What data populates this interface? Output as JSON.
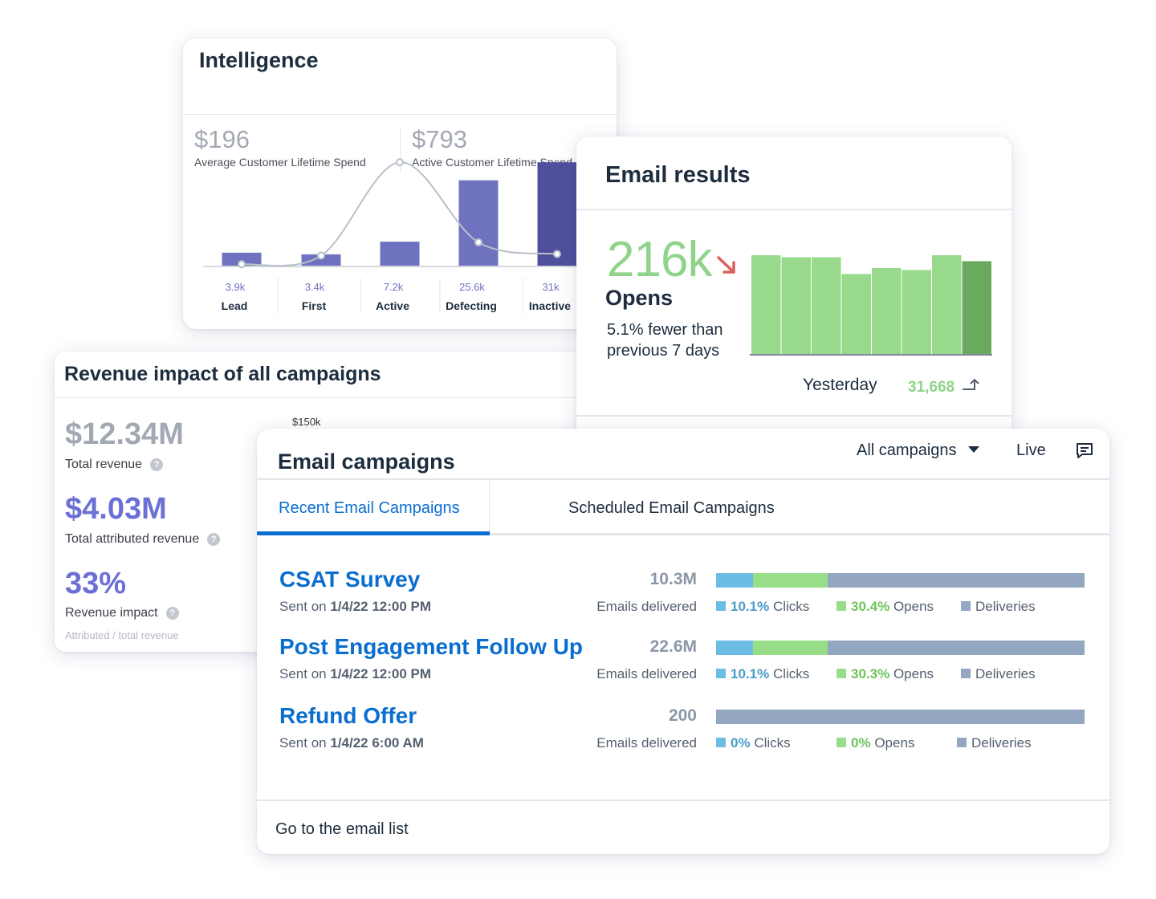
{
  "intelligence": {
    "title": "Intelligence",
    "kpis": [
      {
        "value": "$196",
        "label": "Average Customer Lifetime Spend"
      },
      {
        "value": "$793",
        "label": "Active Customer Lifetime Spend"
      }
    ],
    "colors": {
      "bar": "#6f73bf",
      "bar_last": "#4f4f9e",
      "curve": "#b9bfca"
    },
    "chart_data": {
      "type": "bar",
      "categories": [
        "Lead",
        "First",
        "Active",
        "Defecting",
        "Inactive"
      ],
      "data_labels": [
        "3.9k",
        "3.4k",
        "7.2k",
        "25.6k",
        "31k"
      ],
      "values": [
        3.9,
        3.4,
        7.2,
        25.6,
        31
      ],
      "curve_series": [
        0.2,
        3,
        31,
        7,
        3.5
      ],
      "ylim": [
        0,
        32
      ]
    }
  },
  "revenue": {
    "title": "Revenue impact of all campaigns",
    "axis_label": "$150k",
    "metrics": [
      {
        "value": "$12.34M",
        "label": "Total revenue",
        "color": "#a3a9b3"
      },
      {
        "value": "$4.03M",
        "label": "Total attributed revenue",
        "color": "#6b70d6"
      },
      {
        "value": "33%",
        "label": "Revenue impact",
        "color": "#6b70d6"
      }
    ],
    "subnote": "Attributed / total revenue",
    "help_glyph": "?"
  },
  "email_results": {
    "title": "Email results",
    "big_value": "216k",
    "metric": "Opens",
    "description": "5.1% fewer than previous 7 days",
    "yesterday_label": "Yesterday",
    "yesterday_value": "31,668",
    "colors": {
      "bar": "#98d98c",
      "bar_last": "#6aaa5e",
      "trend_down": "#d9625a"
    },
    "chart_data": {
      "type": "bar",
      "values": [
        100,
        98,
        98,
        81,
        87,
        85,
        100,
        94
      ],
      "ylim": [
        0,
        100
      ]
    }
  },
  "email_campaigns": {
    "title": "Email campaigns",
    "filter": "All campaigns",
    "live": "Live",
    "tabs": {
      "active": "Recent Email Campaigns",
      "inactive": "Scheduled Email Campaigns"
    },
    "campaigns": [
      {
        "name": "CSAT Survey",
        "sent_prefix": "Sent on",
        "sent_date": "1/4/22 12:00 PM",
        "count": "10.3M",
        "delivered_label": "Emails delivered",
        "clicks_pct": "10.1%",
        "clicks_label": "Clicks",
        "opens_pct": "30.4%",
        "opens_label": "Opens",
        "deliveries_label": "Deliveries",
        "click_share": 10.1,
        "open_share": 20.2
      },
      {
        "name": "Post Engagement Follow Up",
        "sent_prefix": "Sent on",
        "sent_date": "1/4/22 12:00 PM",
        "count": "22.6M",
        "delivered_label": "Emails delivered",
        "clicks_pct": "10.1%",
        "clicks_label": "Clicks",
        "opens_pct": "30.3%",
        "opens_label": "Opens",
        "deliveries_label": "Deliveries",
        "click_share": 10.1,
        "open_share": 20.2
      },
      {
        "name": "Refund Offer",
        "sent_prefix": "Sent on",
        "sent_date": "1/4/22 6:00 AM",
        "count": "200",
        "delivered_label": "Emails delivered",
        "clicks_pct": "0%",
        "clicks_label": "Clicks",
        "opens_pct": "0%",
        "opens_label": "Opens",
        "deliveries_label": "Deliveries",
        "click_share": 0,
        "open_share": 0
      }
    ],
    "footer_link": "Go to the email list"
  }
}
